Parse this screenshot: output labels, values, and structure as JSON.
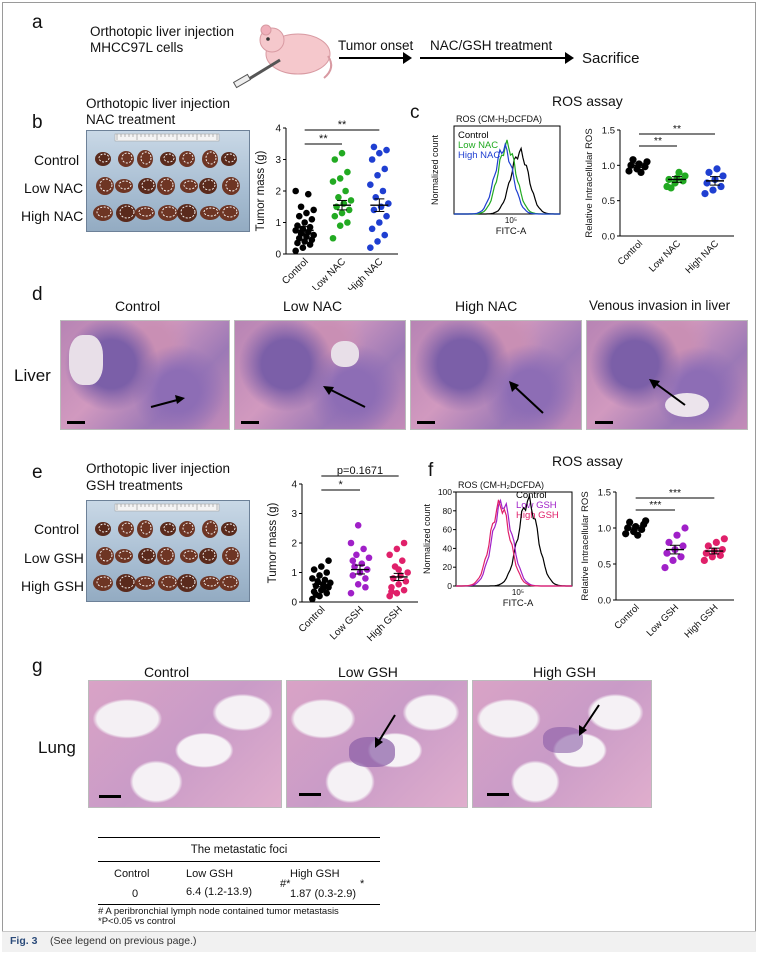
{
  "panels": {
    "a": {
      "letter": "a",
      "line1": "Orthotopic liver injection",
      "line2": "MHCC97L cells",
      "step1": "Tumor onset",
      "step2": "NAC/GSH treatment",
      "step3": "Sacrifice"
    },
    "b": {
      "letter": "b",
      "title1": "Orthotopic liver injection",
      "title2": "NAC treatment",
      "rows": [
        "Control",
        "Low NAC",
        "High NAC"
      ]
    },
    "c": {
      "letter": "c",
      "title": "ROS assay",
      "histo_title": "ROS (CM-H₂DCFDA)",
      "legend": [
        "Control",
        "Low NAC",
        "High NAC"
      ],
      "colors": [
        "#000000",
        "#22aa22",
        "#1f3fd1"
      ]
    },
    "d": {
      "letter": "d",
      "headers": [
        "Control",
        "Low NAC",
        "High NAC",
        "Venous invasion in liver"
      ],
      "row_label": "Liver"
    },
    "e": {
      "letter": "e",
      "title1": "Orthotopic liver injection",
      "title2": "GSH treatments",
      "rows": [
        "Control",
        "Low GSH",
        "High GSH"
      ]
    },
    "f": {
      "letter": "f",
      "title": "ROS assay",
      "histo_title": "ROS (CM-H₂DCFDA)",
      "legend": [
        "Control",
        "Low GSH",
        "High GSH"
      ],
      "colors": [
        "#000000",
        "#a020c8",
        "#e0206a"
      ]
    },
    "g": {
      "letter": "g",
      "headers": [
        "Control",
        "Low GSH",
        "High GSH"
      ],
      "row_label": "Lung"
    }
  },
  "table": {
    "title": "The metastatic foci",
    "headers": [
      "Control",
      "Low GSH",
      "High GSH"
    ],
    "values": [
      "0",
      "6.4 (1.2-13.9)",
      "1.87 (0.3-2.9)"
    ],
    "marks": [
      "#*",
      "*"
    ],
    "note1": "# A peribronchial lymph node contained tumor metastasis",
    "note2": "*P<0.05 vs control"
  },
  "caption": {
    "label": "Fig. 3",
    "text": "(See legend on previous page.)"
  },
  "chart_data": [
    {
      "id": "b-tumor-mass",
      "type": "scatter",
      "ylabel": "Tumor mass (g)",
      "categories": [
        "Control",
        "Low NAC",
        "High NAC"
      ],
      "ylim": [
        0,
        4
      ],
      "yticks": [
        0,
        1,
        2,
        3,
        4
      ],
      "colors": [
        "#000000",
        "#22aa22",
        "#1f3fd1"
      ],
      "means": [
        0.75,
        1.55,
        1.55
      ],
      "sems": [
        0.12,
        0.15,
        0.2
      ],
      "points": [
        [
          0.1,
          0.2,
          0.3,
          0.35,
          0.4,
          0.45,
          0.5,
          0.55,
          0.6,
          0.65,
          0.7,
          0.75,
          0.8,
          0.85,
          0.9,
          1.0,
          1.1,
          1.2,
          1.3,
          1.4,
          1.5,
          1.9,
          2.0
        ],
        [
          0.5,
          0.9,
          1.0,
          1.2,
          1.3,
          1.4,
          1.5,
          1.6,
          1.7,
          1.8,
          2.0,
          2.3,
          2.4,
          2.6,
          3.0,
          3.2
        ],
        [
          0.2,
          0.4,
          0.6,
          0.8,
          1.0,
          1.2,
          1.4,
          1.5,
          1.6,
          1.8,
          2.0,
          2.2,
          2.5,
          2.7,
          3.0,
          3.2,
          3.3,
          3.4
        ]
      ],
      "sig": [
        {
          "from": 0,
          "to": 1,
          "label": "**"
        },
        {
          "from": 0,
          "to": 2,
          "label": "**"
        }
      ]
    },
    {
      "id": "c-ros",
      "type": "scatter",
      "ylabel": "Relative Intracellular ROS",
      "categories": [
        "Control",
        "Low NAC",
        "High NAC"
      ],
      "ylim": [
        0,
        1.5
      ],
      "yticks": [
        0,
        0.5,
        1.0,
        1.5
      ],
      "colors": [
        "#000000",
        "#22aa22",
        "#1f3fd1"
      ],
      "means": [
        1.0,
        0.8,
        0.78
      ],
      "sems": [
        0.03,
        0.04,
        0.06
      ],
      "points": [
        [
          0.92,
          0.95,
          0.98,
          1.0,
          1.02,
          1.05,
          1.08,
          0.9
        ],
        [
          0.7,
          0.75,
          0.78,
          0.8,
          0.82,
          0.85,
          0.68,
          0.9
        ],
        [
          0.6,
          0.65,
          0.7,
          0.75,
          0.8,
          0.85,
          0.9,
          0.95
        ]
      ],
      "sig": [
        {
          "from": 0,
          "to": 1,
          "label": "**"
        },
        {
          "from": 0,
          "to": 2,
          "label": "**"
        }
      ]
    },
    {
      "id": "e-tumor-mass",
      "type": "scatter",
      "ylabel": "Tumor mass (g)",
      "categories": [
        "Control",
        "Low GSH",
        "High GSH"
      ],
      "ylim": [
        0,
        4
      ],
      "yticks": [
        0,
        1,
        2,
        3,
        4
      ],
      "colors": [
        "#000000",
        "#a020c8",
        "#e0206a"
      ],
      "means": [
        0.6,
        1.1,
        0.85
      ],
      "sems": [
        0.08,
        0.15,
        0.12
      ],
      "points": [
        [
          0.1,
          0.2,
          0.3,
          0.35,
          0.4,
          0.5,
          0.55,
          0.6,
          0.65,
          0.7,
          0.75,
          0.8,
          0.9,
          1.0,
          1.1,
          1.2,
          1.4,
          0.25,
          0.45
        ],
        [
          0.3,
          0.6,
          0.8,
          0.9,
          1.0,
          1.1,
          1.2,
          1.3,
          1.5,
          1.6,
          1.8,
          2.0,
          2.6,
          0.5,
          1.4
        ],
        [
          0.2,
          0.3,
          0.4,
          0.5,
          0.6,
          0.7,
          0.8,
          0.9,
          1.0,
          1.2,
          1.4,
          1.6,
          1.8,
          2.0,
          0.35,
          1.1
        ]
      ],
      "sig": [
        {
          "from": 0,
          "to": 1,
          "label": "*"
        },
        {
          "from": 0,
          "to": 2,
          "label": "p=0.1671"
        }
      ]
    },
    {
      "id": "f-ros",
      "type": "scatter",
      "ylabel": "Relative Intracellular ROS",
      "categories": [
        "Control",
        "Low GSH",
        "High GSH"
      ],
      "ylim": [
        0,
        1.5
      ],
      "yticks": [
        0,
        0.5,
        1.0,
        1.5
      ],
      "colors": [
        "#000000",
        "#a020c8",
        "#e0206a"
      ],
      "means": [
        1.0,
        0.7,
        0.68
      ],
      "sems": [
        0.03,
        0.06,
        0.04
      ],
      "points": [
        [
          0.92,
          0.95,
          0.98,
          1.0,
          1.02,
          1.05,
          1.08,
          0.9,
          1.1
        ],
        [
          0.45,
          0.55,
          0.6,
          0.65,
          0.7,
          0.75,
          0.8,
          0.9,
          1.0
        ],
        [
          0.55,
          0.6,
          0.62,
          0.65,
          0.68,
          0.7,
          0.75,
          0.8,
          0.85
        ]
      ],
      "sig": [
        {
          "from": 0,
          "to": 1,
          "label": "***"
        },
        {
          "from": 0,
          "to": 2,
          "label": "***"
        }
      ]
    },
    {
      "id": "c-histogram",
      "type": "line",
      "xlabel": "FITC-A",
      "ylabel": "Normalized count",
      "xtick": "10⁵",
      "series": [
        {
          "name": "Control",
          "peak": 0.62,
          "height": 70
        },
        {
          "name": "Low NAC",
          "peak": 0.5,
          "height": 78
        },
        {
          "name": "High NAC",
          "peak": 0.47,
          "height": 75
        }
      ]
    },
    {
      "id": "f-histogram",
      "type": "line",
      "xlabel": "FITC-A",
      "ylabel": "Normalized count",
      "ylim": [
        0,
        100
      ],
      "yticks": [
        0,
        20,
        40,
        60,
        80,
        100
      ],
      "xtick": "10⁵",
      "series": [
        {
          "name": "Control",
          "peak": 0.62,
          "height": 90
        },
        {
          "name": "Low GSH",
          "peak": 0.4,
          "height": 88
        },
        {
          "name": "High GSH",
          "peak": 0.38,
          "height": 86
        }
      ]
    }
  ]
}
